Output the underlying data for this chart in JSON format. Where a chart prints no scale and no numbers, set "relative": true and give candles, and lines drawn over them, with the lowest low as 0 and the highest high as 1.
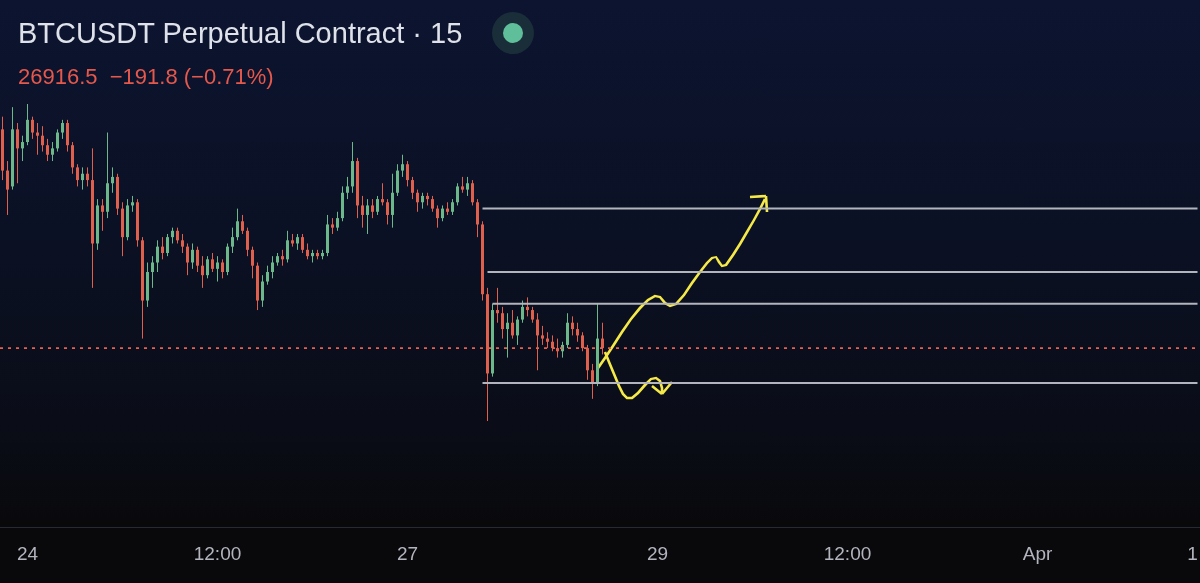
{
  "chart_data": {
    "type": "candlestick",
    "title": "BTCUSDT Perpetual Contract · 15",
    "subtitle": "26916.5  −191.8 (−0.71%)",
    "relative": true,
    "tick_labels": "x",
    "marker": "none",
    "categories": [
      null,
      null,
      null,
      null,
      null,
      "24",
      null,
      null,
      null,
      null,
      null,
      null,
      null,
      null,
      null,
      null,
      null,
      null,
      null,
      null,
      null,
      null,
      null,
      null,
      null,
      null,
      null,
      null,
      null,
      null,
      null,
      null,
      null,
      null,
      null,
      null,
      null,
      null,
      null,
      null,
      null,
      null,
      null,
      "12:00",
      null,
      null,
      null,
      null,
      null,
      null,
      null,
      null,
      null,
      null,
      null,
      null,
      null,
      null,
      null,
      null,
      null,
      null,
      null,
      null,
      null,
      null,
      null,
      null,
      null,
      null,
      null,
      null,
      null,
      null,
      null,
      null,
      null,
      null,
      null,
      null,
      null,
      "27",
      null,
      null,
      null,
      null,
      null,
      null,
      null,
      null,
      null,
      null,
      null,
      null,
      null,
      null,
      null,
      null,
      null,
      null,
      null,
      null,
      null,
      null,
      null,
      null,
      null,
      null,
      null,
      null,
      null,
      null,
      null,
      null,
      null,
      null,
      null,
      null,
      null,
      null,
      null,
      null,
      null,
      null,
      null,
      null,
      null,
      null,
      null,
      null,
      null,
      "29",
      null,
      null,
      null,
      null,
      null,
      null,
      null,
      null,
      null,
      null,
      null,
      null,
      null,
      null,
      null,
      null,
      null,
      null,
      null,
      null,
      null,
      null,
      null,
      null,
      null,
      null,
      null,
      null,
      null,
      null,
      null,
      null,
      null,
      null,
      null,
      null,
      null,
      "12:00",
      null,
      null,
      null,
      null,
      null,
      null,
      null,
      null,
      null,
      null,
      null,
      null,
      null,
      null,
      null,
      null,
      null,
      null,
      null,
      null,
      null,
      null,
      null,
      null,
      null,
      null,
      null,
      null,
      null,
      null,
      null,
      null,
      null,
      null,
      null,
      null,
      null,
      "Apr",
      null,
      null,
      null,
      null,
      null,
      null,
      null,
      null,
      null,
      null,
      null,
      null,
      null,
      null,
      null,
      null,
      null,
      null,
      null,
      null,
      null,
      null,
      null,
      null,
      null,
      null,
      null,
      null,
      null,
      null,
      "1",
      null
    ],
    "ohlc": [
      [
        0.92,
        0.96,
        0.76,
        0.79
      ],
      [
        0.79,
        0.82,
        0.65,
        0.73
      ],
      [
        0.74,
        0.99,
        0.73,
        0.92
      ],
      [
        0.92,
        0.94,
        0.75,
        0.86
      ],
      [
        0.86,
        0.9,
        0.82,
        0.88
      ],
      [
        0.88,
        1.0,
        0.87,
        0.95
      ],
      [
        0.95,
        0.96,
        0.89,
        0.91
      ],
      [
        0.91,
        0.94,
        0.84,
        0.9
      ],
      [
        0.9,
        0.93,
        0.85,
        0.87
      ],
      [
        0.87,
        0.89,
        0.82,
        0.84
      ],
      [
        0.84,
        0.88,
        0.82,
        0.86
      ],
      [
        0.86,
        0.92,
        0.85,
        0.91
      ],
      [
        0.91,
        0.95,
        0.89,
        0.94
      ],
      [
        0.94,
        0.95,
        0.85,
        0.87
      ],
      [
        0.87,
        0.88,
        0.78,
        0.8
      ],
      [
        0.8,
        0.81,
        0.74,
        0.76
      ],
      [
        0.76,
        0.8,
        0.73,
        0.78
      ],
      [
        0.78,
        0.8,
        0.74,
        0.76
      ],
      [
        0.76,
        0.86,
        0.42,
        0.56
      ],
      [
        0.56,
        0.7,
        0.54,
        0.68
      ],
      [
        0.68,
        0.7,
        0.6,
        0.66
      ],
      [
        0.66,
        0.91,
        0.64,
        0.75
      ],
      [
        0.75,
        0.8,
        0.72,
        0.77
      ],
      [
        0.77,
        0.78,
        0.65,
        0.67
      ],
      [
        0.67,
        0.69,
        0.52,
        0.58
      ],
      [
        0.58,
        0.7,
        0.57,
        0.68
      ],
      [
        0.68,
        0.71,
        0.66,
        0.69
      ],
      [
        0.69,
        0.7,
        0.55,
        0.57
      ],
      [
        0.57,
        0.58,
        0.26,
        0.38
      ],
      [
        0.38,
        0.5,
        0.36,
        0.47
      ],
      [
        0.47,
        0.52,
        0.42,
        0.5
      ],
      [
        0.5,
        0.57,
        0.47,
        0.55
      ],
      [
        0.55,
        0.58,
        0.51,
        0.53
      ],
      [
        0.53,
        0.59,
        0.52,
        0.58
      ],
      [
        0.58,
        0.61,
        0.56,
        0.6
      ],
      [
        0.6,
        0.61,
        0.56,
        0.57
      ],
      [
        0.57,
        0.59,
        0.53,
        0.55
      ],
      [
        0.55,
        0.56,
        0.46,
        0.5
      ],
      [
        0.5,
        0.56,
        0.48,
        0.54
      ],
      [
        0.54,
        0.55,
        0.47,
        0.49
      ],
      [
        0.49,
        0.52,
        0.42,
        0.46
      ],
      [
        0.46,
        0.52,
        0.45,
        0.51
      ],
      [
        0.51,
        0.53,
        0.47,
        0.48
      ],
      [
        0.48,
        0.52,
        0.44,
        0.5
      ],
      [
        0.5,
        0.51,
        0.45,
        0.47
      ],
      [
        0.47,
        0.56,
        0.46,
        0.55
      ],
      [
        0.55,
        0.61,
        0.53,
        0.58
      ],
      [
        0.58,
        0.67,
        0.57,
        0.63
      ],
      [
        0.63,
        0.65,
        0.59,
        0.6
      ],
      [
        0.6,
        0.61,
        0.52,
        0.54
      ],
      [
        0.54,
        0.55,
        0.45,
        0.49
      ],
      [
        0.49,
        0.5,
        0.35,
        0.38
      ],
      [
        0.38,
        0.46,
        0.36,
        0.44
      ],
      [
        0.44,
        0.49,
        0.43,
        0.47
      ],
      [
        0.47,
        0.52,
        0.45,
        0.5
      ],
      [
        0.5,
        0.53,
        0.49,
        0.52
      ],
      [
        0.52,
        0.54,
        0.49,
        0.51
      ],
      [
        0.51,
        0.6,
        0.5,
        0.57
      ],
      [
        0.57,
        0.59,
        0.55,
        0.56
      ],
      [
        0.56,
        0.59,
        0.54,
        0.58
      ],
      [
        0.58,
        0.59,
        0.53,
        0.54
      ],
      [
        0.54,
        0.56,
        0.51,
        0.52
      ],
      [
        0.52,
        0.54,
        0.5,
        0.53
      ],
      [
        0.53,
        0.54,
        0.51,
        0.52
      ],
      [
        0.52,
        0.54,
        0.51,
        0.53
      ],
      [
        0.53,
        0.65,
        0.52,
        0.62
      ],
      [
        0.62,
        0.64,
        0.59,
        0.61
      ],
      [
        0.61,
        0.66,
        0.6,
        0.64
      ],
      [
        0.64,
        0.74,
        0.63,
        0.72
      ],
      [
        0.72,
        0.77,
        0.7,
        0.74
      ],
      [
        0.74,
        0.88,
        0.72,
        0.82
      ],
      [
        0.82,
        0.83,
        0.64,
        0.68
      ],
      [
        0.68,
        0.71,
        0.61,
        0.65
      ],
      [
        0.65,
        0.7,
        0.59,
        0.68
      ],
      [
        0.68,
        0.7,
        0.64,
        0.66
      ],
      [
        0.66,
        0.71,
        0.65,
        0.7
      ],
      [
        0.7,
        0.75,
        0.68,
        0.69
      ],
      [
        0.69,
        0.7,
        0.62,
        0.65
      ],
      [
        0.65,
        0.78,
        0.61,
        0.72
      ],
      [
        0.72,
        0.81,
        0.71,
        0.79
      ],
      [
        0.79,
        0.84,
        0.77,
        0.81
      ],
      [
        0.81,
        0.82,
        0.74,
        0.76
      ],
      [
        0.76,
        0.77,
        0.7,
        0.72
      ],
      [
        0.72,
        0.73,
        0.66,
        0.69
      ],
      [
        0.69,
        0.72,
        0.67,
        0.71
      ],
      [
        0.71,
        0.72,
        0.68,
        0.7
      ],
      [
        0.7,
        0.71,
        0.66,
        0.67
      ],
      [
        0.67,
        0.68,
        0.61,
        0.64
      ],
      [
        0.64,
        0.68,
        0.63,
        0.67
      ],
      [
        0.67,
        0.69,
        0.65,
        0.66
      ],
      [
        0.66,
        0.7,
        0.65,
        0.69
      ],
      [
        0.69,
        0.75,
        0.68,
        0.74
      ],
      [
        0.74,
        0.77,
        0.72,
        0.73
      ],
      [
        0.73,
        0.77,
        0.71,
        0.75
      ],
      [
        0.75,
        0.76,
        0.68,
        0.69
      ],
      [
        0.69,
        0.7,
        0.58,
        0.62
      ],
      [
        0.62,
        0.63,
        0.38,
        0.4
      ],
      [
        0.4,
        0.42,
        0.0,
        0.15
      ],
      [
        0.15,
        0.37,
        0.14,
        0.35
      ],
      [
        0.35,
        0.42,
        0.31,
        0.34
      ],
      [
        0.34,
        0.36,
        0.26,
        0.29
      ],
      [
        0.29,
        0.34,
        0.2,
        0.31
      ],
      [
        0.31,
        0.35,
        0.26,
        0.27
      ],
      [
        0.27,
        0.33,
        0.24,
        0.32
      ],
      [
        0.32,
        0.38,
        0.31,
        0.36
      ],
      [
        0.36,
        0.39,
        0.33,
        0.35
      ],
      [
        0.35,
        0.36,
        0.31,
        0.32
      ],
      [
        0.32,
        0.34,
        0.16,
        0.27
      ],
      [
        0.27,
        0.3,
        0.24,
        0.26
      ],
      [
        0.26,
        0.28,
        0.23,
        0.25
      ],
      [
        0.25,
        0.27,
        0.22,
        0.23
      ],
      [
        0.23,
        0.26,
        0.2,
        0.22
      ],
      [
        0.22,
        0.25,
        0.2,
        0.24
      ],
      [
        0.24,
        0.34,
        0.23,
        0.31
      ],
      [
        0.31,
        0.33,
        0.27,
        0.29
      ],
      [
        0.29,
        0.31,
        0.25,
        0.27
      ],
      [
        0.27,
        0.28,
        0.22,
        0.23
      ],
      [
        0.23,
        0.24,
        0.13,
        0.16
      ],
      [
        0.16,
        0.18,
        0.07,
        0.12
      ],
      [
        0.12,
        0.37,
        0.11,
        0.26
      ],
      [
        0.26,
        0.31,
        0.21,
        0.23
      ],
      null,
      null,
      null,
      null,
      null,
      null,
      null,
      null,
      null,
      null,
      null,
      null,
      null,
      null,
      null,
      null,
      null,
      null,
      null,
      null,
      null,
      null,
      null,
      null,
      null,
      null,
      null,
      null,
      null,
      null,
      null,
      null,
      null,
      null,
      null,
      null,
      null,
      null,
      null,
      null,
      null,
      null,
      null,
      null,
      null,
      null,
      null,
      null,
      null,
      null,
      null,
      null,
      null,
      null,
      null,
      null,
      null,
      null,
      null,
      null,
      null,
      null,
      null,
      null,
      null,
      null,
      null,
      null,
      null,
      null,
      null,
      null,
      null,
      null,
      null,
      null,
      null,
      null,
      null,
      null,
      null,
      null,
      null,
      null,
      null,
      null,
      null,
      null,
      null,
      null,
      null,
      null,
      null,
      null,
      null,
      null,
      null,
      null,
      null,
      null,
      null,
      null,
      null,
      null,
      null,
      null,
      null,
      null,
      null,
      null,
      null,
      null,
      null,
      null,
      null,
      null,
      null,
      null,
      null
    ],
    "colors": [
      "#e0604e",
      "#e0604e",
      "#6cb88a",
      "#e0604e",
      "#6cb88a",
      "#6cb88a",
      "#e0604e",
      "#e0604e",
      "#e0604e",
      "#e0604e",
      "#6cb88a",
      "#6cb88a",
      "#6cb88a",
      "#e0604e",
      "#e0604e",
      "#e0604e",
      "#6cb88a",
      "#e0604e",
      "#e0604e",
      "#6cb88a",
      "#e0604e",
      "#6cb88a",
      "#6cb88a",
      "#e0604e",
      "#e0604e",
      "#6cb88a",
      "#6cb88a",
      "#e0604e",
      "#e0604e",
      "#6cb88a",
      "#6cb88a",
      "#6cb88a",
      "#e0604e",
      "#6cb88a",
      "#6cb88a",
      "#e0604e",
      "#e0604e",
      "#e0604e",
      "#6cb88a",
      "#e0604e",
      "#e0604e",
      "#6cb88a",
      "#e0604e",
      "#6cb88a",
      "#e0604e",
      "#6cb88a",
      "#6cb88a",
      "#6cb88a",
      "#e0604e",
      "#e0604e",
      "#e0604e",
      "#e0604e",
      "#6cb88a",
      "#6cb88a",
      "#6cb88a",
      "#6cb88a",
      "#e0604e",
      "#6cb88a",
      "#e0604e",
      "#6cb88a",
      "#e0604e",
      "#e0604e",
      "#6cb88a",
      "#e0604e",
      "#6cb88a",
      "#6cb88a",
      "#e0604e",
      "#6cb88a",
      "#6cb88a",
      "#6cb88a",
      "#6cb88a",
      "#e0604e",
      "#e0604e",
      "#6cb88a",
      "#e0604e",
      "#6cb88a",
      "#e0604e",
      "#e0604e",
      "#6cb88a",
      "#6cb88a",
      "#6cb88a",
      "#e0604e",
      "#e0604e",
      "#e0604e",
      "#6cb88a",
      "#e0604e",
      "#e0604e",
      "#e0604e",
      "#6cb88a",
      "#e0604e",
      "#6cb88a",
      "#6cb88a",
      "#e0604e",
      "#6cb88a",
      "#e0604e",
      "#e0604e",
      "#e0604e",
      "#e0604e",
      "#6cb88a",
      "#e0604e",
      "#e0604e",
      "#6cb88a",
      "#e0604e",
      "#6cb88a",
      "#6cb88a",
      "#e0604e",
      "#e0604e",
      "#e0604e",
      "#e0604e",
      "#e0604e",
      "#e0604e",
      "#e0604e",
      "#6cb88a",
      "#6cb88a",
      "#e0604e",
      "#e0604e",
      "#e0604e",
      "#e0604e",
      "#e0604e",
      "#6cb88a",
      "#e0604e",
      null,
      null,
      null,
      null,
      null,
      null,
      null,
      null,
      null,
      null,
      null,
      null,
      null,
      null,
      null,
      null,
      null,
      null,
      null,
      null,
      null,
      null,
      null,
      null,
      null,
      null,
      null,
      null,
      null,
      null,
      null,
      null,
      null,
      null,
      null,
      null,
      null,
      null,
      null,
      null,
      null,
      null,
      null,
      null,
      null,
      null,
      null,
      null,
      null,
      null,
      null,
      null,
      null,
      null,
      null,
      null,
      null,
      null,
      null,
      null,
      null,
      null,
      null,
      null,
      null,
      null,
      null,
      null,
      null,
      null,
      null,
      null,
      null,
      null,
      null,
      null,
      null,
      null,
      null,
      null,
      null,
      null,
      null,
      null,
      null,
      null,
      null,
      null,
      null,
      null,
      null,
      null,
      null,
      null,
      null,
      null,
      null,
      null,
      null,
      null,
      null,
      null,
      null,
      null,
      null,
      null,
      null,
      null,
      null,
      null,
      null,
      null,
      null,
      null,
      null,
      null,
      null,
      null,
      null
    ],
    "series": [
      {
        "type": "line",
        "color": "#b2b5be",
        "values": [
          null,
          null,
          null,
          null,
          null,
          null,
          null,
          null,
          null,
          null,
          null,
          null,
          null,
          null,
          null,
          null,
          null,
          null,
          null,
          null,
          null,
          null,
          null,
          null,
          null,
          null,
          null,
          null,
          null,
          null,
          null,
          null,
          null,
          null,
          null,
          null,
          null,
          null,
          null,
          null,
          null,
          null,
          null,
          null,
          null,
          null,
          null,
          null,
          null,
          null,
          null,
          null,
          null,
          null,
          null,
          null,
          null,
          null,
          null,
          null,
          null,
          null,
          null,
          null,
          null,
          null,
          null,
          null,
          null,
          null,
          null,
          null,
          null,
          null,
          null,
          null,
          null,
          null,
          null,
          null,
          null,
          null,
          null,
          null,
          null,
          null,
          null,
          null,
          null,
          null,
          null,
          null,
          null,
          null,
          null,
          null,
          0.67,
          0.67,
          0.67,
          0.67,
          0.67,
          0.67,
          0.67,
          0.67,
          0.67,
          0.67,
          0.67,
          0.67,
          0.67,
          0.67,
          0.67,
          0.67,
          0.67,
          0.67,
          0.67,
          0.67,
          0.67,
          0.67,
          0.67,
          0.67,
          0.67,
          0.67,
          0.67,
          0.67,
          0.67,
          0.67,
          0.67,
          0.67,
          0.67,
          0.67,
          0.67,
          0.67,
          0.67,
          0.67,
          0.67,
          0.67,
          0.67,
          0.67,
          0.67,
          0.67,
          0.67,
          0.67,
          0.67,
          0.67,
          0.67,
          0.67,
          0.67,
          0.67,
          0.67,
          0.67,
          0.67,
          0.67,
          0.67,
          0.67,
          0.67,
          0.67,
          0.67,
          0.67,
          0.67,
          0.67,
          0.67,
          0.67,
          0.67,
          0.67,
          0.67,
          0.67,
          0.67,
          0.67,
          0.67,
          0.67,
          0.67,
          0.67,
          0.67,
          0.67,
          0.67,
          0.67,
          0.67,
          0.67,
          0.67,
          0.67,
          0.67,
          0.67,
          0.67,
          0.67,
          0.67,
          0.67,
          0.67,
          0.67,
          0.67,
          0.67,
          0.67,
          0.67,
          0.67,
          0.67,
          0.67,
          0.67,
          0.67,
          0.67,
          0.67,
          0.67,
          0.67,
          0.67,
          0.67,
          0.67,
          0.67,
          0.67,
          0.67,
          0.67,
          0.67,
          0.67,
          0.67,
          0.67,
          0.67,
          0.67,
          0.67,
          0.67,
          0.67,
          0.67,
          0.67,
          0.67,
          0.67,
          0.67,
          0.67,
          0.67,
          0.67,
          0.67,
          0.67,
          0.67,
          0.67,
          0.67,
          0.67,
          0.67,
          0.67,
          0.67,
          0.67,
          0.67,
          0.67,
          0.67,
          0.67,
          0.67
        ]
      },
      {
        "type": "line",
        "color": "#b2b5be",
        "values": [
          null,
          null,
          null,
          null,
          null,
          null,
          null,
          null,
          null,
          null,
          null,
          null,
          null,
          null,
          null,
          null,
          null,
          null,
          null,
          null,
          null,
          null,
          null,
          null,
          null,
          null,
          null,
          null,
          null,
          null,
          null,
          null,
          null,
          null,
          null,
          null,
          null,
          null,
          null,
          null,
          null,
          null,
          null,
          null,
          null,
          null,
          null,
          null,
          null,
          null,
          null,
          null,
          null,
          null,
          null,
          null,
          null,
          null,
          null,
          null,
          null,
          null,
          null,
          null,
          null,
          null,
          null,
          null,
          null,
          null,
          null,
          null,
          null,
          null,
          null,
          null,
          null,
          null,
          null,
          null,
          null,
          null,
          null,
          null,
          null,
          null,
          null,
          null,
          null,
          null,
          null,
          null,
          null,
          null,
          null,
          null,
          null,
          0.47,
          0.47,
          0.47,
          0.47,
          0.47,
          0.47,
          0.47,
          0.47,
          0.47,
          0.47,
          0.47,
          0.47,
          0.47,
          0.47,
          0.47,
          0.47,
          0.47,
          0.47,
          0.47,
          0.47,
          0.47,
          0.47,
          0.47,
          0.47,
          0.47,
          0.47,
          0.47,
          0.47,
          0.47,
          0.47,
          0.47,
          0.47,
          0.47,
          0.47,
          0.47,
          0.47,
          0.47,
          0.47,
          0.47,
          0.47,
          0.47,
          0.47,
          0.47,
          0.47,
          0.47,
          0.47,
          0.47,
          0.47,
          0.47,
          0.47,
          0.47,
          0.47,
          0.47,
          0.47,
          0.47,
          0.47,
          0.47,
          0.47,
          0.47,
          0.47,
          0.47,
          0.47,
          0.47,
          0.47,
          0.47,
          0.47,
          0.47,
          0.47,
          0.47,
          0.47,
          0.47,
          0.47,
          0.47,
          0.47,
          0.47,
          0.47,
          0.47,
          0.47,
          0.47,
          0.47,
          0.47,
          0.47,
          0.47,
          0.47,
          0.47,
          0.47,
          0.47,
          0.47,
          0.47,
          0.47,
          0.47,
          0.47,
          0.47,
          0.47,
          0.47,
          0.47,
          0.47,
          0.47,
          0.47,
          0.47,
          0.47,
          0.47,
          0.47,
          0.47,
          0.47,
          0.47,
          0.47,
          0.47,
          0.47,
          0.47,
          0.47,
          0.47,
          0.47,
          0.47,
          0.47,
          0.47,
          0.47,
          0.47,
          0.47,
          0.47,
          0.47,
          0.47,
          0.47,
          0.47,
          0.47,
          0.47,
          0.47,
          0.47,
          0.47,
          0.47,
          0.47,
          0.47,
          0.47,
          0.47,
          0.47,
          0.47,
          0.47,
          0.47,
          0.47,
          0.47,
          0.47,
          0.47,
          0.47
        ]
      },
      {
        "type": "line",
        "color": "#b2b5be",
        "values": [
          null,
          null,
          null,
          null,
          null,
          null,
          null,
          null,
          null,
          null,
          null,
          null,
          null,
          null,
          null,
          null,
          null,
          null,
          null,
          null,
          null,
          null,
          null,
          null,
          null,
          null,
          null,
          null,
          null,
          null,
          null,
          null,
          null,
          null,
          null,
          null,
          null,
          null,
          null,
          null,
          null,
          null,
          null,
          null,
          null,
          null,
          null,
          null,
          null,
          null,
          null,
          null,
          null,
          null,
          null,
          null,
          null,
          null,
          null,
          null,
          null,
          null,
          null,
          null,
          null,
          null,
          null,
          null,
          null,
          null,
          null,
          null,
          null,
          null,
          null,
          null,
          null,
          null,
          null,
          null,
          null,
          null,
          null,
          null,
          null,
          null,
          null,
          null,
          null,
          null,
          null,
          null,
          null,
          null,
          null,
          null,
          null,
          null,
          0.37,
          0.37,
          0.37,
          0.37,
          0.37,
          0.37,
          0.37,
          0.37,
          0.37,
          0.37,
          0.37,
          0.37,
          0.37,
          0.37,
          0.37,
          0.37,
          0.37,
          0.37,
          0.37,
          0.37,
          0.37,
          0.37,
          0.37,
          0.37,
          0.37,
          0.37,
          0.37,
          0.37,
          0.37,
          0.37,
          0.37,
          0.37,
          0.37,
          0.37,
          0.37,
          0.37,
          0.37,
          0.37,
          0.37,
          0.37,
          0.37,
          0.37,
          0.37,
          0.37,
          0.37,
          0.37,
          0.37,
          0.37,
          0.37,
          0.37,
          0.37,
          0.37,
          0.37,
          0.37,
          0.37,
          0.37,
          0.37,
          0.37,
          0.37,
          0.37,
          0.37,
          0.37,
          0.37,
          0.37,
          0.37,
          0.37,
          0.37,
          0.37,
          0.37,
          0.37,
          0.37,
          0.37,
          0.37,
          0.37,
          0.37,
          0.37,
          0.37,
          0.37,
          0.37,
          0.37,
          0.37,
          0.37,
          0.37,
          0.37,
          0.37,
          0.37,
          0.37,
          0.37,
          0.37,
          0.37,
          0.37,
          0.37,
          0.37,
          0.37,
          0.37,
          0.37,
          0.37,
          0.37,
          0.37,
          0.37,
          0.37,
          0.37,
          0.37,
          0.37,
          0.37,
          0.37,
          0.37,
          0.37,
          0.37,
          0.37,
          0.37,
          0.37,
          0.37,
          0.37,
          0.37,
          0.37,
          0.37,
          0.37,
          0.37,
          0.37,
          0.37,
          0.37,
          0.37,
          0.37,
          0.37,
          0.37,
          0.37,
          0.37,
          0.37,
          0.37,
          0.37,
          0.37,
          0.37,
          0.37,
          0.37,
          0.37,
          0.37,
          0.37,
          0.37,
          0.37,
          0.37,
          0.37
        ]
      },
      {
        "type": "line",
        "color": "#b2b5be",
        "values": [
          null,
          null,
          null,
          null,
          null,
          null,
          null,
          null,
          null,
          null,
          null,
          null,
          null,
          null,
          null,
          null,
          null,
          null,
          null,
          null,
          null,
          null,
          null,
          null,
          null,
          null,
          null,
          null,
          null,
          null,
          null,
          null,
          null,
          null,
          null,
          null,
          null,
          null,
          null,
          null,
          null,
          null,
          null,
          null,
          null,
          null,
          null,
          null,
          null,
          null,
          null,
          null,
          null,
          null,
          null,
          null,
          null,
          null,
          null,
          null,
          null,
          null,
          null,
          null,
          null,
          null,
          null,
          null,
          null,
          null,
          null,
          null,
          null,
          null,
          null,
          null,
          null,
          null,
          null,
          null,
          null,
          null,
          null,
          null,
          null,
          null,
          null,
          null,
          null,
          null,
          null,
          null,
          null,
          null,
          null,
          null,
          0.12,
          0.12,
          0.12,
          0.12,
          0.12,
          0.12,
          0.12,
          0.12,
          0.12,
          0.12,
          0.12,
          0.12,
          0.12,
          0.12,
          0.12,
          0.12,
          0.12,
          0.12,
          0.12,
          0.12,
          0.12,
          0.12,
          0.12,
          0.12,
          0.12,
          0.12,
          0.12,
          0.12,
          0.12,
          0.12,
          0.12,
          0.12,
          0.12,
          0.12,
          0.12,
          0.12,
          0.12,
          0.12,
          0.12,
          0.12,
          0.12,
          0.12,
          0.12,
          0.12,
          0.12,
          0.12,
          0.12,
          0.12,
          0.12,
          0.12,
          0.12,
          0.12,
          0.12,
          0.12,
          0.12,
          0.12,
          0.12,
          0.12,
          0.12,
          0.12,
          0.12,
          0.12,
          0.12,
          0.12,
          0.12,
          0.12,
          0.12,
          0.12,
          0.12,
          0.12,
          0.12,
          0.12,
          0.12,
          0.12,
          0.12,
          0.12,
          0.12,
          0.12,
          0.12,
          0.12,
          0.12,
          0.12,
          0.12,
          0.12,
          0.12,
          0.12,
          0.12,
          0.12,
          0.12,
          0.12,
          0.12,
          0.12,
          0.12,
          0.12,
          0.12,
          0.12,
          0.12,
          0.12,
          0.12,
          0.12,
          0.12,
          0.12,
          0.12,
          0.12,
          0.12,
          0.12,
          0.12,
          0.12,
          0.12,
          0.12,
          0.12,
          0.12,
          0.12,
          0.12,
          0.12,
          0.12,
          0.12,
          0.12,
          0.12,
          0.12,
          0.12,
          0.12,
          0.12,
          0.12,
          0.12,
          0.12,
          0.12,
          0.12,
          0.12,
          0.12,
          0.12,
          0.12,
          0.12,
          0.12,
          0.12,
          0.12,
          0.12,
          0.12,
          0.12,
          0.12,
          0.12,
          0.12,
          0.12,
          0.12
        ]
      }
    ],
    "ref_lines": [
      {
        "axis": "y",
        "value": 0.23,
        "color": "#e8604f",
        "line_style": "dotted"
      }
    ]
  }
}
